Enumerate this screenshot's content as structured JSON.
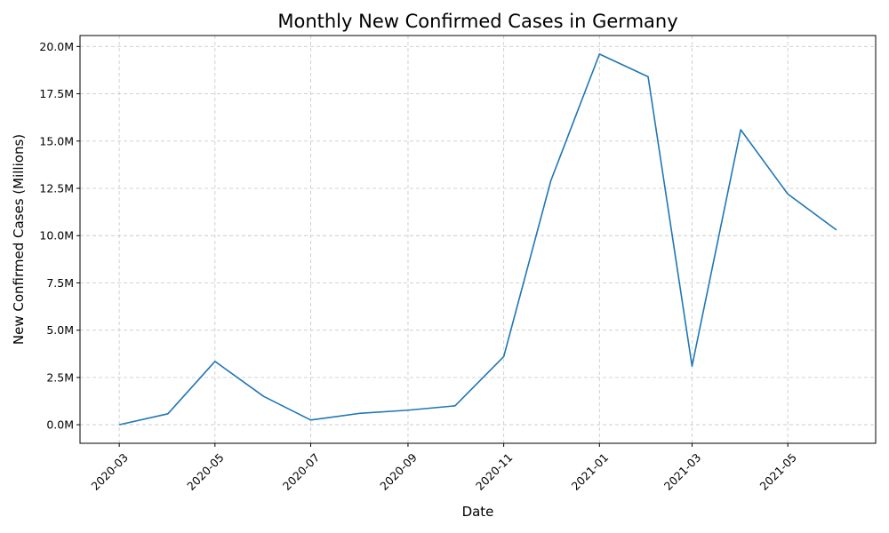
{
  "chart_data": {
    "type": "line",
    "title": "Monthly New Confirmed Cases in Germany",
    "xlabel": "Date",
    "ylabel": "New Confirmed Cases (Millions)",
    "x": [
      "2020-03-01",
      "2020-04-01",
      "2020-05-01",
      "2020-06-01",
      "2020-07-01",
      "2020-08-01",
      "2020-09-01",
      "2020-10-01",
      "2020-11-01",
      "2020-12-01",
      "2021-01-01",
      "2021-02-01",
      "2021-03-01",
      "2021-04-01",
      "2021-05-01",
      "2021-06-01"
    ],
    "series": [
      {
        "values": [
          0.0,
          0.58,
          3.35,
          1.5,
          0.25,
          0.6,
          0.77,
          1.0,
          3.6,
          12.9,
          19.6,
          18.4,
          3.1,
          15.6,
          12.2,
          10.3
        ],
        "color": "#1f77b4"
      }
    ],
    "x_ticks": [
      "2020-03",
      "2020-05",
      "2020-07",
      "2020-09",
      "2020-11",
      "2021-01",
      "2021-03",
      "2021-05"
    ],
    "y_ticks": [
      "0.0M",
      "2.5M",
      "5.0M",
      "7.5M",
      "10.0M",
      "12.5M",
      "15.0M",
      "17.5M",
      "20.0M"
    ],
    "y_tick_values": [
      0,
      2.5,
      5,
      7.5,
      10,
      12.5,
      15,
      17.5,
      20
    ],
    "ylim": [
      -0.98,
      20.58
    ],
    "xlim": [
      "2020-02-05",
      "2021-06-26"
    ],
    "grid": true,
    "x_tick_rotation": 45
  }
}
